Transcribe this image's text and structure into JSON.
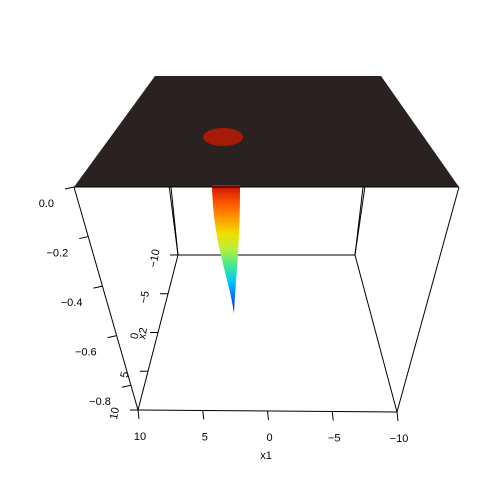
{
  "chart_data": {
    "type": "surface",
    "title": "",
    "xlabel": "x1",
    "ylabel": "x2",
    "zlabel": "",
    "xlim": [
      -10,
      10
    ],
    "ylim": [
      -10,
      10
    ],
    "zlim": [
      -0.9,
      0
    ],
    "x_ticks": [
      {
        "value": 10,
        "label": "10"
      },
      {
        "value": 5,
        "label": "5"
      },
      {
        "value": 0,
        "label": "0"
      },
      {
        "value": -5,
        "label": "−5"
      },
      {
        "value": -10,
        "label": "−10"
      }
    ],
    "y_ticks": [
      {
        "value": -10,
        "label": "−10"
      },
      {
        "value": -5,
        "label": "−5"
      },
      {
        "value": 0,
        "label": "0"
      },
      {
        "value": 5,
        "label": "5"
      },
      {
        "value": 10,
        "label": "10"
      }
    ],
    "z_ticks": [
      {
        "value": 0,
        "label": "0.0"
      },
      {
        "value": -0.2,
        "label": "−0.2"
      },
      {
        "value": -0.4,
        "label": "−0.4"
      },
      {
        "value": -0.6,
        "label": "−0.6"
      },
      {
        "value": -0.8,
        "label": "−0.8"
      }
    ],
    "surface": {
      "baseline_z": 0,
      "minimum": {
        "x1": 2.8,
        "x2": 2.8,
        "z": -0.8
      },
      "flat_color": "#2a2220",
      "colormap": [
        "#1a00d0",
        "#0070ff",
        "#00c8ff",
        "#40e890",
        "#b0f040",
        "#f0e000",
        "#ff9a00",
        "#ff5500",
        "#d01800"
      ]
    },
    "grid": false,
    "legend": "none"
  }
}
